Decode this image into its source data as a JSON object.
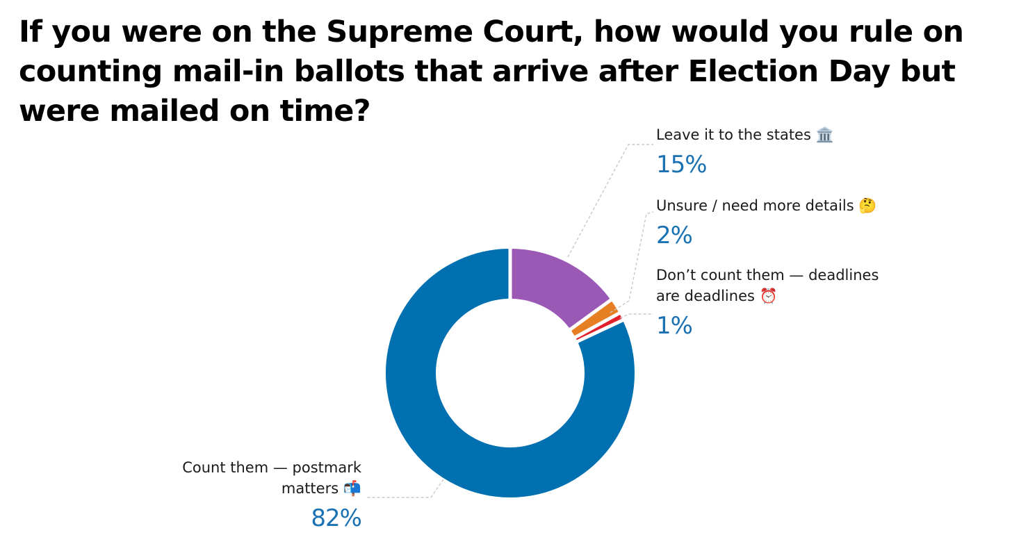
{
  "chart_data": {
    "type": "pie",
    "title": "If you were on the Supreme Court, how would you rule on counting mail-in ballots that arrive after Election Day but were mailed on time?",
    "donut": true,
    "slices": [
      {
        "label": "Count them — postmark matters 📬",
        "label_lines": [
          "Count them — postmark",
          "matters 📬"
        ],
        "value": 82,
        "value_label": "82%",
        "color": "#0070b0"
      },
      {
        "label": "Leave it to the states 🏛️",
        "label_lines": [
          "Leave it to the states 🏛️"
        ],
        "value": 15,
        "value_label": "15%",
        "color": "#9b59b6"
      },
      {
        "label": "Unsure / need more details 🤔",
        "label_lines": [
          "Unsure / need more details 🤔"
        ],
        "value": 2,
        "value_label": "2%",
        "color": "#e67e22"
      },
      {
        "label": "Don’t count them — deadlines are deadlines ⏰",
        "label_lines": [
          "Don’t count them — deadlines",
          "are deadlines ⏰"
        ],
        "value": 1,
        "value_label": "1%",
        "color": "#e0202a"
      }
    ],
    "value_label_color": "#1a72b3"
  }
}
